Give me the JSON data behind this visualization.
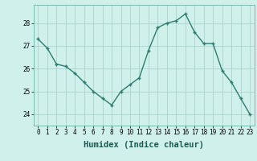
{
  "x": [
    0,
    1,
    2,
    3,
    4,
    5,
    6,
    7,
    8,
    9,
    10,
    11,
    12,
    13,
    14,
    15,
    16,
    17,
    18,
    19,
    20,
    21,
    22,
    23
  ],
  "y": [
    27.3,
    26.9,
    26.2,
    26.1,
    25.8,
    25.4,
    25.0,
    24.7,
    24.4,
    25.0,
    25.3,
    25.6,
    26.8,
    27.8,
    28.0,
    28.1,
    28.4,
    27.6,
    27.1,
    27.1,
    25.9,
    25.4,
    24.7,
    24.0
  ],
  "line_color": "#2e7d6e",
  "marker": "+",
  "bg_color": "#cff0eb",
  "grid_color": "#aad4cc",
  "xlabel": "Humidex (Indice chaleur)",
  "ylim": [
    23.5,
    28.8
  ],
  "xlim": [
    -0.5,
    23.5
  ],
  "yticks": [
    24,
    25,
    26,
    27,
    28
  ],
  "xticks": [
    0,
    1,
    2,
    3,
    4,
    5,
    6,
    7,
    8,
    9,
    10,
    11,
    12,
    13,
    14,
    15,
    16,
    17,
    18,
    19,
    20,
    21,
    22,
    23
  ],
  "tick_label_fontsize": 5.5,
  "xlabel_fontsize": 7.5,
  "linewidth": 1.0,
  "markersize": 3.5
}
